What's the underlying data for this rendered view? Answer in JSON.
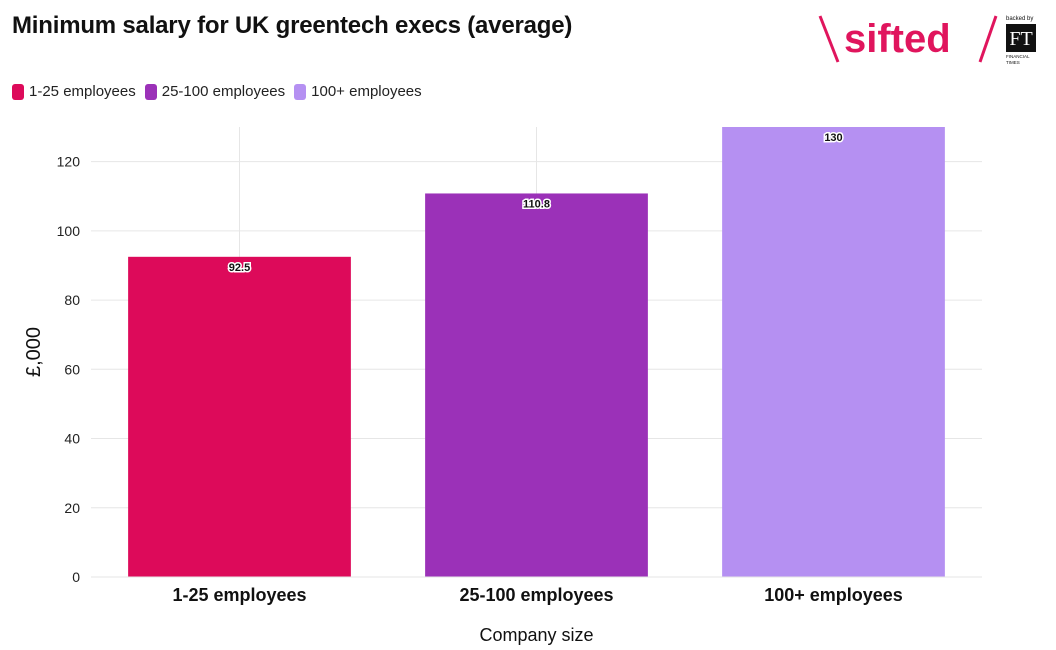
{
  "title": "Minimum salary for UK greentech execs (average)",
  "logo": {
    "brand": "sifted",
    "backed_by": "backed by",
    "ft": "FT",
    "ft_line1": "FINANCIAL",
    "ft_line2": "TIMES",
    "brand_color": "#e0155d"
  },
  "legend": [
    {
      "label": "1-25 employees",
      "color": "#dd0a5a"
    },
    {
      "label": "25-100 employees",
      "color": "#9b31b8"
    },
    {
      "label": "100+ employees",
      "color": "#b590f2"
    }
  ],
  "chart_data": {
    "type": "bar",
    "categories": [
      "1-25 employees",
      "25-100 employees",
      "100+ employees"
    ],
    "values": [
      92.5,
      110.8,
      130
    ],
    "value_labels": [
      "92.5",
      "110.8",
      "130"
    ],
    "colors": [
      "#dd0a5a",
      "#9b31b8",
      "#b590f2"
    ],
    "ylim": [
      0,
      130
    ],
    "yticks": [
      0,
      20,
      40,
      60,
      80,
      100,
      120
    ],
    "xlabel": "Company size",
    "ylabel": "£,000",
    "grid": true,
    "legend_position": "top-left"
  }
}
